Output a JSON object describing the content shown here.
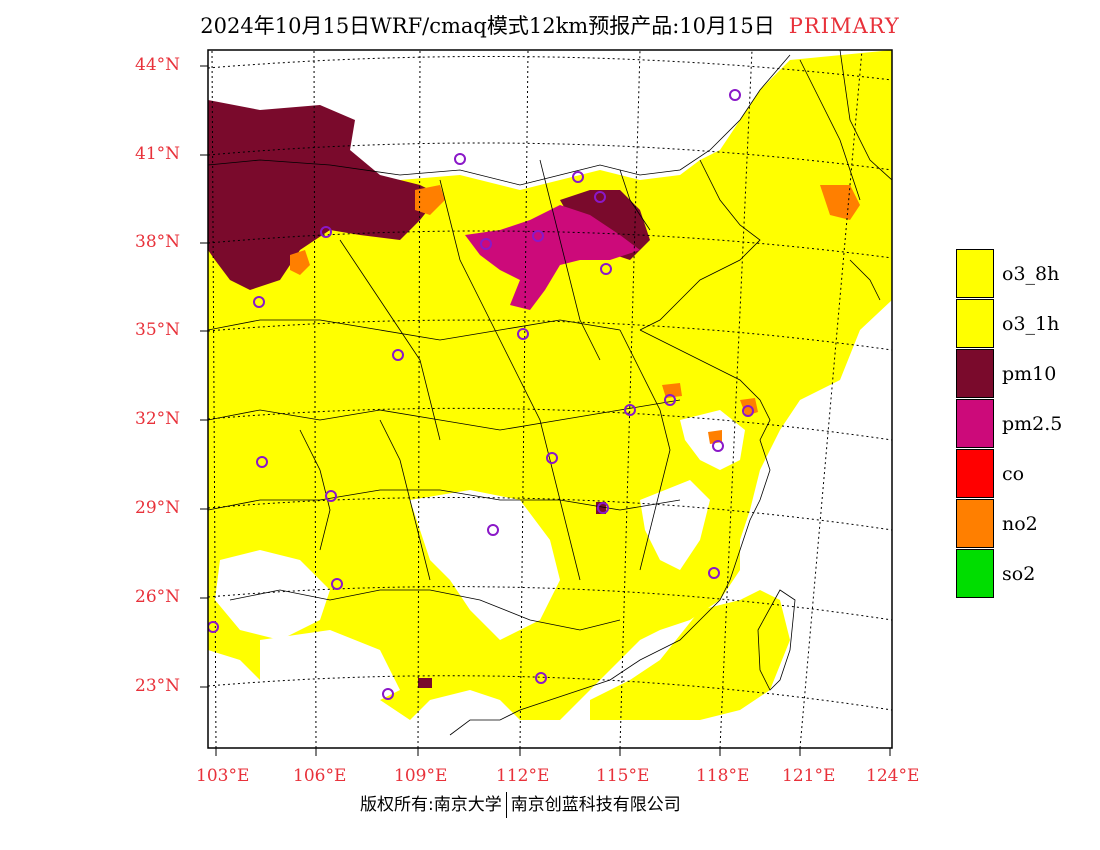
{
  "title": {
    "text": "2024年10月15日WRF/cmaq模式12km预报产品:10月15日",
    "highlight": "PRIMARY"
  },
  "map": {
    "lat_labels": [
      "44°N",
      "41°N",
      "38°N",
      "35°N",
      "32°N",
      "29°N",
      "26°N",
      "23°N"
    ],
    "lon_labels": [
      "103°E",
      "106°E",
      "109°E",
      "112°E",
      "115°E",
      "118°E",
      "121°E",
      "124°E"
    ],
    "colors": {
      "o3_8h": "#ffff00",
      "pm10": "#7a0a2c",
      "pm2_5": "#cc0a7a",
      "no2": "#ff7f00",
      "marker": "#8a18c8",
      "grid": "#000000",
      "label": "#e8313a"
    }
  },
  "legend": {
    "items": [
      {
        "label": "o3_8h",
        "color": "#ffff00"
      },
      {
        "label": "o3_1h",
        "color": "#ffff00"
      },
      {
        "label": "pm10",
        "color": "#7a0a2c"
      },
      {
        "label": "pm2.5",
        "color": "#cc0a7a"
      },
      {
        "label": "co",
        "color": "#ff0000"
      },
      {
        "label": "no2",
        "color": "#ff7f00"
      },
      {
        "label": "so2",
        "color": "#00dd00"
      }
    ]
  },
  "footer": {
    "left": "版权所有:南京大学",
    "right": "南京创蓝科技有限公司"
  }
}
